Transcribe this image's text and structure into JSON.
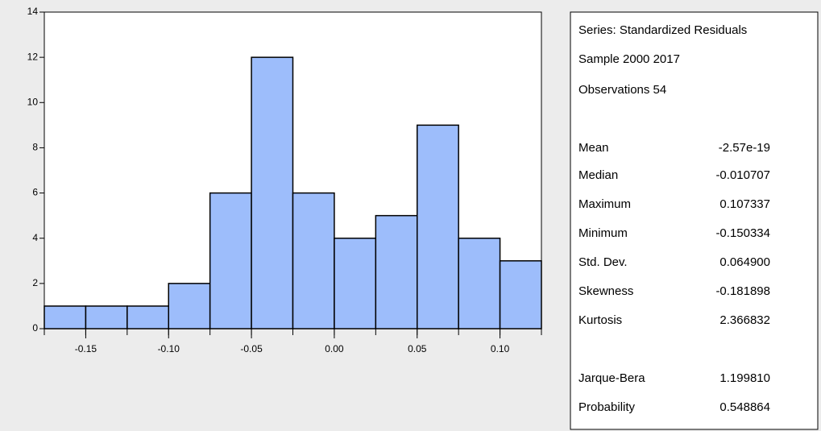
{
  "chart_data": {
    "type": "histogram",
    "bins": [
      -0.175,
      -0.15,
      -0.125,
      -0.1,
      -0.075,
      -0.05,
      -0.025,
      0,
      0.025,
      0.05,
      0.075,
      0.1,
      0.125
    ],
    "values": [
      1,
      1,
      1,
      2,
      6,
      12,
      6,
      4,
      5,
      9,
      4,
      3
    ],
    "color": "#9dbdfb",
    "xlim": [
      -0.175,
      0.125
    ],
    "xticks": [
      -0.15,
      {
        "value": -0.1,
        "label": "-0.10"
      },
      -0.05,
      {
        "value": 0,
        "label": "0.00"
      },
      0.05,
      {
        "value": 0.1,
        "label": "0.10"
      }
    ],
    "ylim": [
      0,
      14
    ],
    "yticks": [
      0,
      2,
      4,
      6,
      8,
      10,
      12,
      14
    ],
    "header_lines": [
      "Series: Standardized Residuals",
      "Sample 2000 2017",
      "Observations 54"
    ],
    "stats": [
      {
        "label": "Mean",
        "value": "-2.57e-19"
      },
      {
        "label": "Median",
        "value": "-0.010707"
      },
      {
        "label": "Maximum",
        "value": "0.107337"
      },
      {
        "label": "Minimum",
        "value": "-0.150334"
      },
      {
        "label": "Std. Dev.",
        "value": "0.064900"
      },
      {
        "label": "Skewness",
        "value": "-0.181898"
      },
      {
        "label": "Kurtosis",
        "value": "2.366832"
      },
      {
        "label": "Jarque-Bera",
        "value": "1.199810"
      },
      {
        "label": "Probability",
        "value": "0.548864"
      }
    ]
  }
}
